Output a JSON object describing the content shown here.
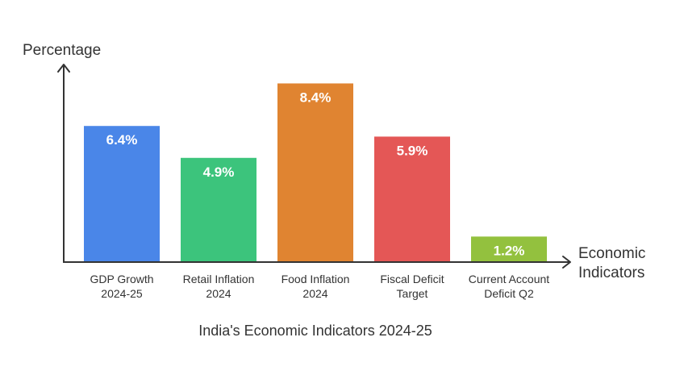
{
  "chart_data": {
    "type": "bar",
    "title": "India's Economic Indicators 2024-25",
    "ylabel": "Percentage",
    "xlabel_lines": [
      "Economic",
      "Indicators"
    ],
    "ylim": [
      0,
      9.1
    ],
    "categories": [
      [
        "GDP Growth",
        "2024-25"
      ],
      [
        "Retail Inflation",
        "2024"
      ],
      [
        "Food Inflation",
        "2024"
      ],
      [
        "Fiscal Deficit",
        "Target"
      ],
      [
        "Current Account",
        "Deficit Q2"
      ]
    ],
    "values": [
      6.4,
      4.9,
      8.4,
      5.9,
      1.2
    ],
    "value_labels": [
      "6.4%",
      "4.9%",
      "8.4%",
      "5.9%",
      "1.2%"
    ],
    "colors": [
      "#4a86e8",
      "#3cc47c",
      "#e08431",
      "#e45756",
      "#93c13e"
    ],
    "axis_color": "#333333",
    "grid": false,
    "legend": "none"
  }
}
